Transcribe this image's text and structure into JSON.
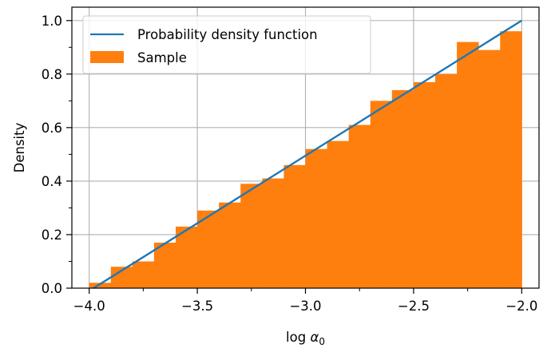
{
  "chart_data": {
    "type": "bar",
    "xlabel_prefix": "log ",
    "xlabel_symbol": "α",
    "xlabel_subscript": "0",
    "ylabel": "Density",
    "xlim": [
      -4.08,
      -1.92
    ],
    "ylim": [
      0.0,
      1.05
    ],
    "x_ticks": [
      -4.0,
      -3.5,
      -3.0,
      -2.5,
      -2.0
    ],
    "x_tick_labels": [
      "−4.0",
      "−3.5",
      "−3.0",
      "−2.5",
      "−2.0"
    ],
    "x_minor_ticks": [
      -3.75,
      -3.25,
      -2.75,
      -2.25
    ],
    "y_ticks": [
      0.0,
      0.2,
      0.4,
      0.6,
      0.8,
      1.0
    ],
    "y_tick_labels": [
      "0.0",
      "0.2",
      "0.4",
      "0.6",
      "0.8",
      "1.0"
    ],
    "y_minor_ticks": [
      0.1,
      0.3,
      0.5,
      0.7,
      0.9
    ],
    "grid": true,
    "legend_position": "top-left",
    "series": [
      {
        "name": "Probability density function",
        "kind": "line",
        "color": "#1f77b4",
        "x": [
          -3.98,
          -2.0
        ],
        "y": [
          0.0,
          1.0
        ]
      },
      {
        "name": "Sample",
        "kind": "histogram",
        "color": "#ff7f0e",
        "bin_edges": [
          -4.0,
          -3.9,
          -3.8,
          -3.7,
          -3.6,
          -3.5,
          -3.4,
          -3.3,
          -3.2,
          -3.1,
          -3.0,
          -2.9,
          -2.8,
          -2.7,
          -2.6,
          -2.5,
          -2.4,
          -2.3,
          -2.2,
          -2.1,
          -2.0
        ],
        "values": [
          0.02,
          0.08,
          0.1,
          0.17,
          0.23,
          0.29,
          0.32,
          0.39,
          0.41,
          0.46,
          0.52,
          0.55,
          0.61,
          0.7,
          0.74,
          0.77,
          0.8,
          0.92,
          0.89,
          0.96
        ]
      }
    ]
  }
}
